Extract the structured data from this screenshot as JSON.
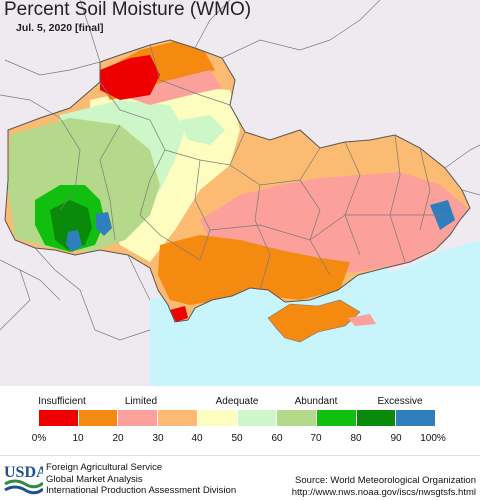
{
  "title": "Percent Soil Moisture (WMO)",
  "subtitle": "Jul. 5, 2020 [final]",
  "legend": {
    "categories": [
      {
        "label": "Insufficient",
        "at_percent": 10
      },
      {
        "label": "Limited",
        "at_percent": 30
      },
      {
        "label": "Adequate",
        "at_percent": 50
      },
      {
        "label": "Abundant",
        "at_percent": 70
      },
      {
        "label": "Excessive",
        "at_percent": 90
      }
    ],
    "bins": [
      {
        "range": "0-10",
        "color": "#ee0000"
      },
      {
        "range": "10-20",
        "color": "#f58a10"
      },
      {
        "range": "20-30",
        "color": "#fba09a"
      },
      {
        "range": "30-40",
        "color": "#fbbb72"
      },
      {
        "range": "40-50",
        "color": "#fefdc0"
      },
      {
        "range": "50-60",
        "color": "#cdf6c9"
      },
      {
        "range": "60-70",
        "color": "#b5d98a"
      },
      {
        "range": "70-80",
        "color": "#11c00f"
      },
      {
        "range": "80-90",
        "color": "#0a8a0a"
      },
      {
        "range": "90-100",
        "color": "#2f7fbf"
      }
    ],
    "ticks": [
      "0%",
      "10",
      "20",
      "30",
      "40",
      "50",
      "60",
      "70",
      "80",
      "90",
      "100%"
    ]
  },
  "colors": {
    "water": "#c8f5fb",
    "outside": "#efeaf0",
    "borders": "#7a7a7a"
  },
  "footer": {
    "logo_text": "USDA",
    "agency_lines": [
      "Foreign Agricultural Service",
      "Global Market Analysis",
      "International Production Assessment Division"
    ],
    "source_lines": [
      "Source: World Meteorological Organization",
      "http://www.nws.noaa.gov/iscs/nwsgtsfs.html"
    ]
  }
}
